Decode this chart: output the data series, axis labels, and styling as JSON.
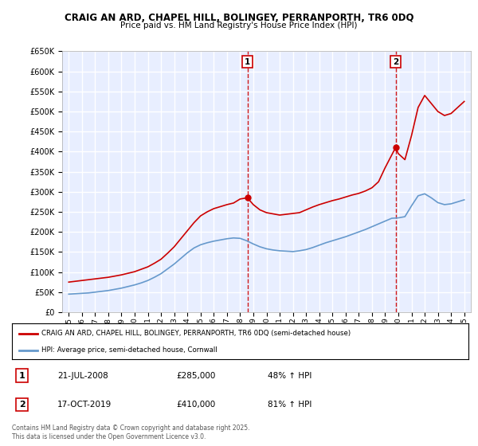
{
  "title1": "CRAIG AN ARD, CHAPEL HILL, BOLINGEY, PERRANPORTH, TR6 0DQ",
  "title2": "Price paid vs. HM Land Registry's House Price Index (HPI)",
  "ytick_vals": [
    0,
    50000,
    100000,
    150000,
    200000,
    250000,
    300000,
    350000,
    400000,
    450000,
    500000,
    550000,
    600000,
    650000
  ],
  "ylim": [
    0,
    650000
  ],
  "xlim_start": 1994.5,
  "xlim_end": 2025.5,
  "xticks": [
    1995,
    1996,
    1997,
    1998,
    1999,
    2000,
    2001,
    2002,
    2003,
    2004,
    2005,
    2006,
    2007,
    2008,
    2009,
    2010,
    2011,
    2012,
    2013,
    2014,
    2015,
    2016,
    2017,
    2018,
    2019,
    2020,
    2021,
    2022,
    2023,
    2024,
    2025
  ],
  "red_color": "#cc0000",
  "blue_color": "#6699cc",
  "marker1_x": 2008.55,
  "marker1_y": 285000,
  "marker2_x": 2019.79,
  "marker2_y": 410000,
  "vline1_x": 2008.55,
  "vline2_x": 2019.79,
  "legend_label_red": "CRAIG AN ARD, CHAPEL HILL, BOLINGEY, PERRANPORTH, TR6 0DQ (semi-detached house)",
  "legend_label_blue": "HPI: Average price, semi-detached house, Cornwall",
  "table_rows": [
    {
      "num": "1",
      "date": "21-JUL-2008",
      "price": "£285,000",
      "change": "48% ↑ HPI"
    },
    {
      "num": "2",
      "date": "17-OCT-2019",
      "price": "£410,000",
      "change": "81% ↑ HPI"
    }
  ],
  "footnote": "Contains HM Land Registry data © Crown copyright and database right 2025.\nThis data is licensed under the Open Government Licence v3.0.",
  "background_color": "#ffffff",
  "plot_bg_color": "#e8eeff",
  "grid_color": "#ffffff",
  "red_line_data_x": [
    1995,
    1995.5,
    1996,
    1996.5,
    1997,
    1997.5,
    1998,
    1998.5,
    1999,
    1999.5,
    2000,
    2000.5,
    2001,
    2001.5,
    2002,
    2002.5,
    2003,
    2003.5,
    2004,
    2004.5,
    2005,
    2005.5,
    2006,
    2006.5,
    2007,
    2007.5,
    2008,
    2008.55,
    2009,
    2009.5,
    2010,
    2010.5,
    2011,
    2011.5,
    2012,
    2012.5,
    2013,
    2013.5,
    2014,
    2014.5,
    2015,
    2015.5,
    2016,
    2016.5,
    2017,
    2017.5,
    2018,
    2018.5,
    2019,
    2019.79,
    2020,
    2020.5,
    2021,
    2021.5,
    2022,
    2022.5,
    2023,
    2023.5,
    2024,
    2024.5,
    2025
  ],
  "red_line_data_y": [
    75000,
    77000,
    79000,
    81000,
    83000,
    85000,
    87000,
    90000,
    93000,
    97000,
    101000,
    107000,
    113000,
    122000,
    132000,
    147000,
    163000,
    183000,
    203000,
    223000,
    240000,
    250000,
    258000,
    263000,
    268000,
    272000,
    282000,
    285000,
    268000,
    255000,
    248000,
    245000,
    242000,
    244000,
    246000,
    248000,
    255000,
    262000,
    268000,
    273000,
    278000,
    282000,
    287000,
    292000,
    296000,
    302000,
    310000,
    325000,
    360000,
    410000,
    395000,
    380000,
    440000,
    510000,
    540000,
    520000,
    500000,
    490000,
    495000,
    510000,
    525000
  ],
  "blue_line_data_x": [
    1995,
    1995.5,
    1996,
    1996.5,
    1997,
    1997.5,
    1998,
    1998.5,
    1999,
    1999.5,
    2000,
    2000.5,
    2001,
    2001.5,
    2002,
    2002.5,
    2003,
    2003.5,
    2004,
    2004.5,
    2005,
    2005.5,
    2006,
    2006.5,
    2007,
    2007.5,
    2008,
    2008.5,
    2009,
    2009.5,
    2010,
    2010.5,
    2011,
    2011.5,
    2012,
    2012.5,
    2013,
    2013.5,
    2014,
    2014.5,
    2015,
    2015.5,
    2016,
    2016.5,
    2017,
    2017.5,
    2018,
    2018.5,
    2019,
    2019.5,
    2020,
    2020.5,
    2021,
    2021.5,
    2022,
    2022.5,
    2023,
    2023.5,
    2024,
    2024.5,
    2025
  ],
  "blue_line_data_y": [
    45000,
    46000,
    47000,
    48000,
    50000,
    52000,
    54000,
    57000,
    60000,
    64000,
    68000,
    73000,
    79000,
    87000,
    96000,
    108000,
    120000,
    134000,
    148000,
    160000,
    168000,
    173000,
    177000,
    180000,
    183000,
    185000,
    184000,
    178000,
    170000,
    163000,
    158000,
    155000,
    153000,
    152000,
    151000,
    153000,
    156000,
    161000,
    167000,
    173000,
    178000,
    183000,
    188000,
    194000,
    200000,
    206000,
    213000,
    220000,
    227000,
    234000,
    235000,
    238000,
    265000,
    290000,
    295000,
    285000,
    273000,
    268000,
    270000,
    275000,
    280000
  ]
}
